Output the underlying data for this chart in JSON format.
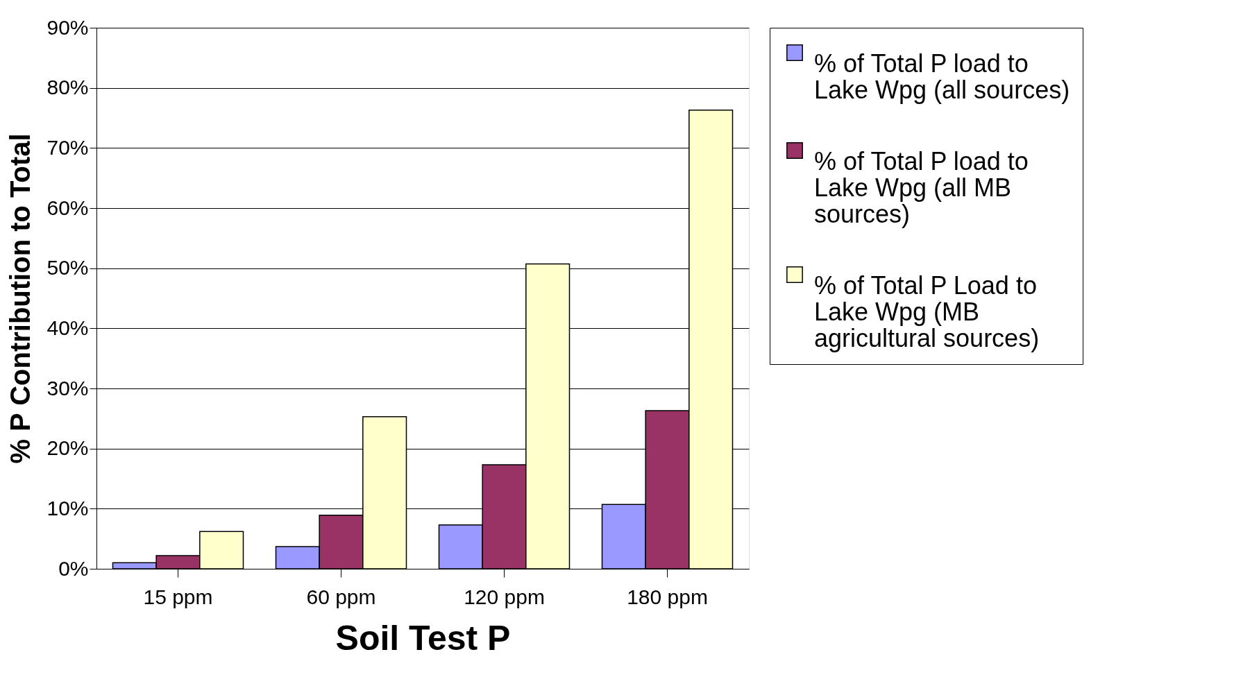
{
  "chart_data": {
    "type": "bar",
    "xlabel": "Soil Test P",
    "ylabel": "% P Contribution to Total",
    "categories": [
      "15 ppm",
      "60 ppm",
      "120 ppm",
      "180 ppm"
    ],
    "series": [
      {
        "name": "% of Total P load to Lake Wpg (all sources)",
        "color": "#9999ff",
        "values": [
          1.0,
          3.7,
          7.3,
          10.7
        ]
      },
      {
        "name": "% of Total P load to Lake Wpg (all MB sources)",
        "color": "#993366",
        "values": [
          2.2,
          8.9,
          17.3,
          26.3
        ]
      },
      {
        "name": "% of Total P Load to Lake Wpg (MB agricultural sources)",
        "color": "#ffffcc",
        "values": [
          6.2,
          25.3,
          50.7,
          76.3
        ]
      }
    ],
    "ylim": [
      0,
      90
    ],
    "yticks": [
      {
        "value": 0,
        "label": "0%"
      },
      {
        "value": 10,
        "label": "10%"
      },
      {
        "value": 20,
        "label": "20%"
      },
      {
        "value": 30,
        "label": "30%"
      },
      {
        "value": 40,
        "label": "40%"
      },
      {
        "value": 50,
        "label": "50%"
      },
      {
        "value": 60,
        "label": "60%"
      },
      {
        "value": 70,
        "label": "70%"
      },
      {
        "value": 80,
        "label": "80%"
      },
      {
        "value": 90,
        "label": "90%"
      }
    ],
    "grid": "y",
    "legend": "right"
  }
}
